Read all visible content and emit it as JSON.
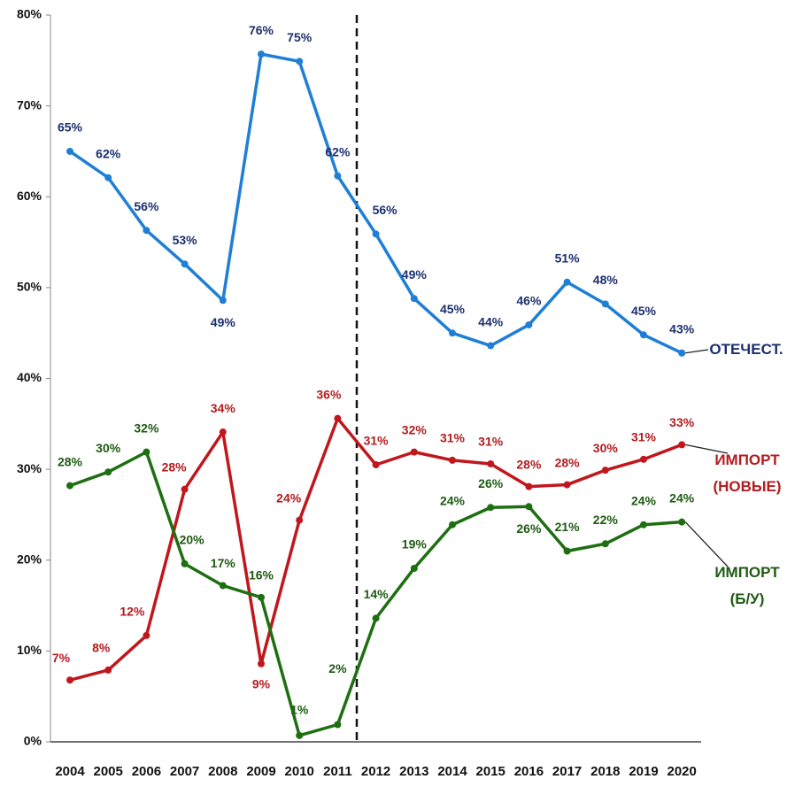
{
  "chart_data": {
    "type": "line",
    "categories": [
      "2004",
      "2005",
      "2006",
      "2007",
      "2008",
      "2009",
      "2010",
      "2011",
      "2012",
      "2013",
      "2014",
      "2015",
      "2016",
      "2017",
      "2018",
      "2019",
      "2020"
    ],
    "ylim": [
      0,
      80
    ],
    "yticks": [
      {
        "value": 0,
        "label": "0%"
      },
      {
        "value": 10,
        "label": "10%"
      },
      {
        "value": 20,
        "label": "20%"
      },
      {
        "value": 30,
        "label": "30%"
      },
      {
        "value": 40,
        "label": "40%"
      },
      {
        "value": 50,
        "label": "50%"
      },
      {
        "value": 60,
        "label": "60%"
      },
      {
        "value": 70,
        "label": "70%"
      },
      {
        "value": 80,
        "label": "80%"
      }
    ],
    "series": [
      {
        "name": "ОТЕЧЕСТ.",
        "color": "#1f7fd4",
        "label_color": "#1b2f6e",
        "values": [
          65,
          62.1,
          56.3,
          52.6,
          48.6,
          75.7,
          74.9,
          62.3,
          55.9,
          48.8,
          45,
          43.6,
          45.9,
          50.6,
          48.2,
          44.8,
          42.8
        ],
        "value_labels": [
          "65%",
          "62%",
          "56%",
          "53%",
          "49%",
          "76%",
          "75%",
          "62%",
          "56%",
          "49%",
          "45%",
          "44%",
          "46%",
          "51%",
          "48%",
          "45%",
          "43%"
        ]
      },
      {
        "name": "ИМПОРТ (НОВЫЕ)",
        "color": "#c0171d",
        "label_color": "#b21c1f",
        "values": [
          6.8,
          7.9,
          11.7,
          27.8,
          34.1,
          8.6,
          24.4,
          35.6,
          30.5,
          31.9,
          31,
          30.6,
          28.1,
          28.3,
          29.9,
          31.1,
          32.7
        ],
        "value_labels": [
          "7%",
          "8%",
          "12%",
          "28%",
          "34%",
          "9%",
          "24%",
          "36%",
          "31%",
          "32%",
          "31%",
          "31%",
          "28%",
          "28%",
          "30%",
          "31%",
          "33%"
        ]
      },
      {
        "name": "ИМПОРТ (Б/У)",
        "color": "#1e6e12",
        "label_color": "#1e5a12",
        "values": [
          28.2,
          29.7,
          31.9,
          19.6,
          17.2,
          15.9,
          0.7,
          1.9,
          13.6,
          19.1,
          23.9,
          25.8,
          25.9,
          21,
          21.8,
          23.9,
          24.2
        ],
        "value_labels": [
          "28%",
          "30%",
          "32%",
          "20%",
          "17%",
          "16%",
          "1%",
          "2%",
          "14%",
          "19%",
          "24%",
          "26%",
          "26%",
          "21%",
          "22%",
          "24%",
          "24%"
        ]
      }
    ]
  }
}
